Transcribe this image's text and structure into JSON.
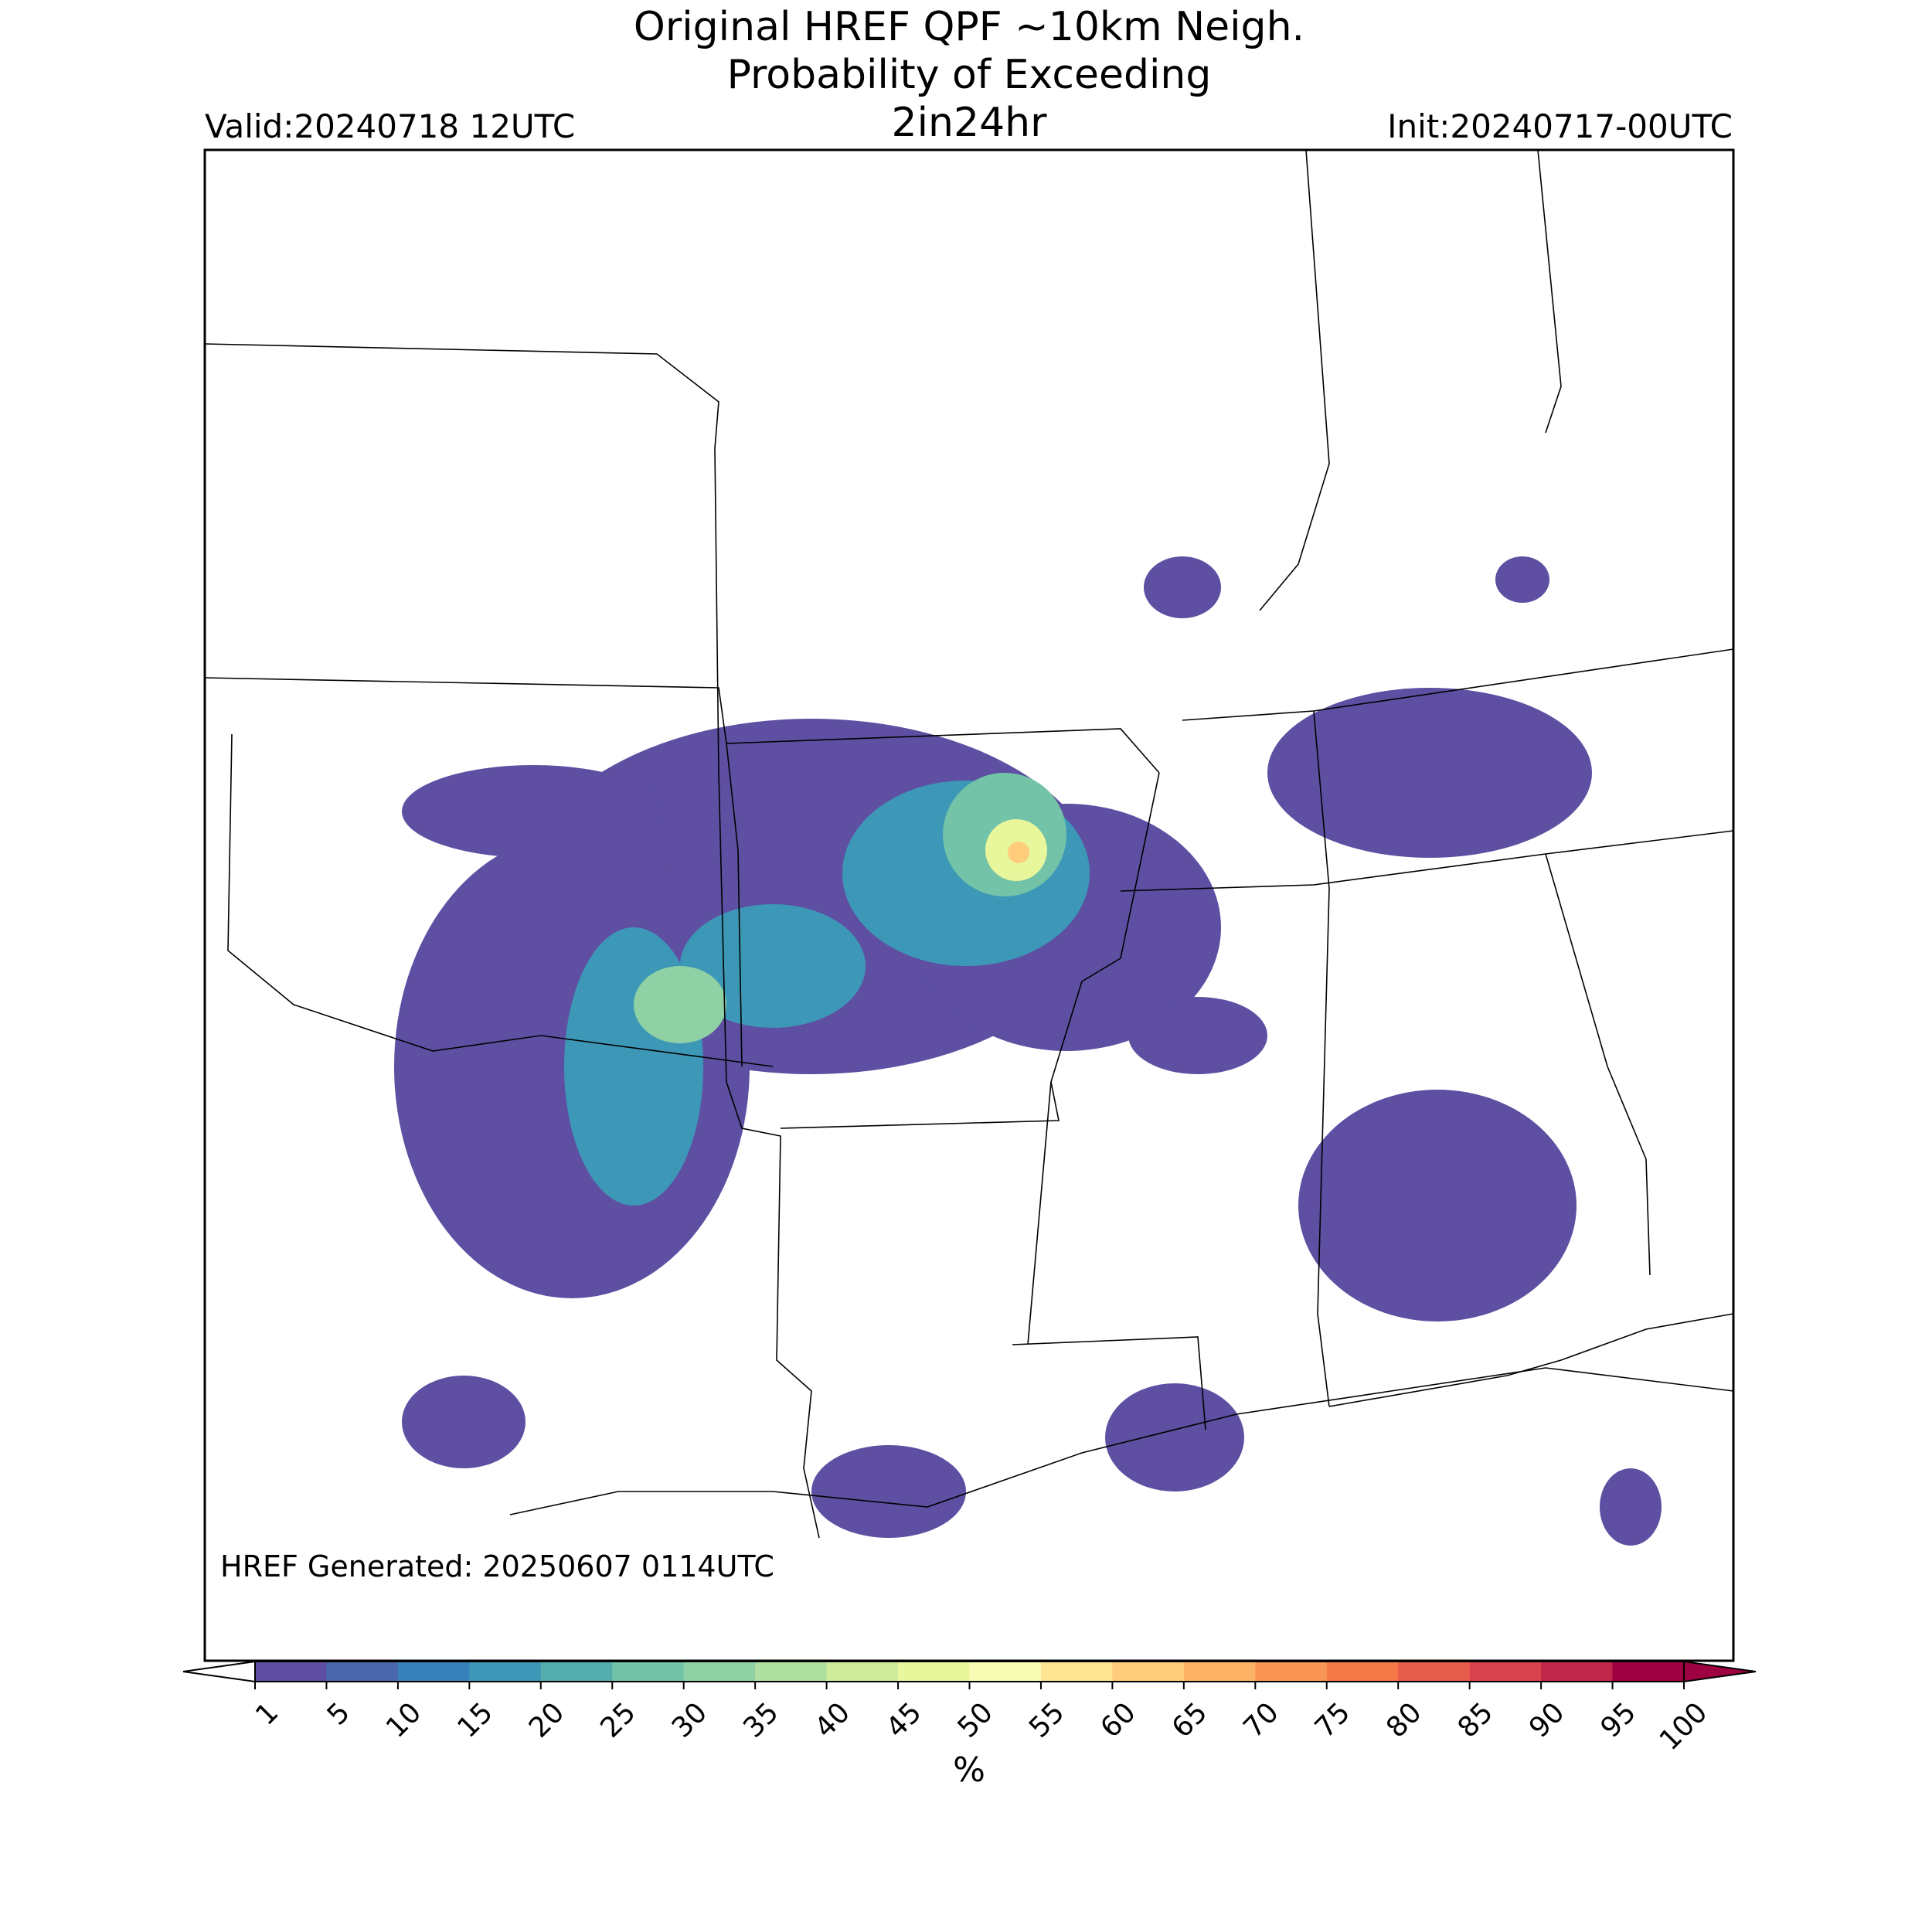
{
  "header": {
    "title_lines": [
      "Original HREF QPF ~10km Neigh.",
      "Probability of Exceeding",
      "2in24hr"
    ],
    "valid": "Valid:20240718 12UTC",
    "init": "Init:20240717-00UTC"
  },
  "footer": {
    "generated": "HREF Generated: 20250607 0114UTC"
  },
  "colorbar": {
    "ticks": [
      1,
      5,
      10,
      15,
      20,
      25,
      30,
      35,
      40,
      45,
      50,
      55,
      60,
      65,
      70,
      75,
      80,
      85,
      90,
      95,
      100
    ],
    "colors": [
      "#5e4fa2",
      "#4a66ad",
      "#3880b9",
      "#3d98b8",
      "#54aead",
      "#72c3a7",
      "#8fd1a4",
      "#b0dfa2",
      "#cfec9d",
      "#e8f69c",
      "#f8fcb4",
      "#fee593",
      "#fecc7b",
      "#fdb365",
      "#fa9655",
      "#f57948",
      "#e75d4b",
      "#d8434e",
      "#c0274a",
      "#9e0142"
    ],
    "label": "%"
  }
}
